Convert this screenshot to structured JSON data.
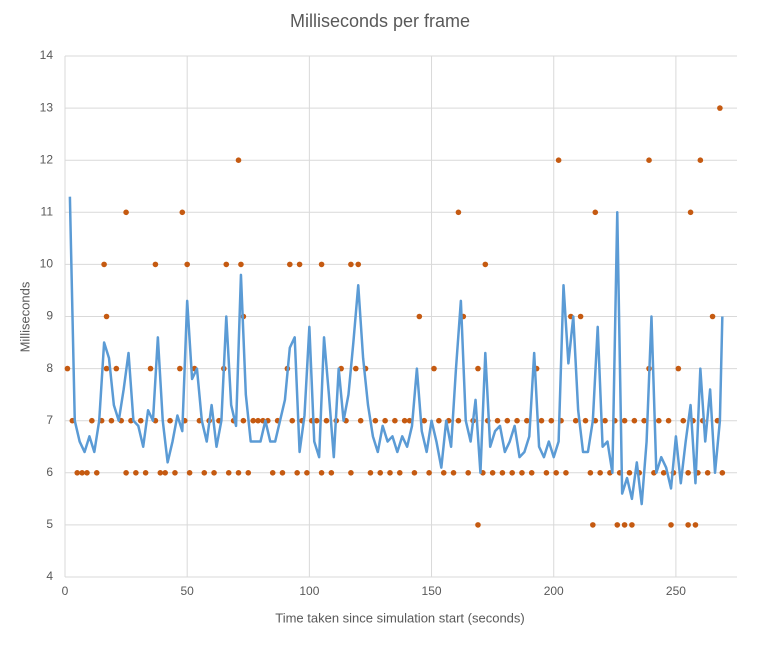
{
  "chart_data": {
    "type": "combo",
    "title": "Milliseconds per frame",
    "x_label": "Time taken since simulation start (seconds)",
    "y_label": "Milliseconds",
    "xlim": [
      0,
      275
    ],
    "xticks": [
      0,
      50,
      100,
      150,
      200,
      250
    ],
    "ylim": [
      4,
      14
    ],
    "yticks": [
      4,
      5,
      6,
      7,
      8,
      9,
      10,
      11,
      12,
      13,
      14
    ],
    "grid": true,
    "series": [
      {
        "type": "scatter",
        "color": "#c55a11",
        "x": [
          1,
          3,
          5,
          7,
          9,
          11,
          13,
          15,
          17,
          19,
          21,
          23,
          25,
          27,
          29,
          31,
          33,
          35,
          37,
          39,
          41,
          43,
          45,
          47,
          49,
          51,
          53,
          55,
          57,
          59,
          61,
          63,
          65,
          67,
          69,
          71,
          73,
          75,
          77,
          79,
          81,
          83,
          85,
          87,
          89,
          91,
          93,
          95,
          97,
          99,
          101,
          103,
          105,
          107,
          109,
          111,
          113,
          115,
          117,
          119,
          121,
          123,
          125,
          127,
          129,
          131,
          133,
          135,
          137,
          139,
          141,
          143,
          145,
          147,
          149,
          151,
          153,
          155,
          157,
          159,
          161,
          163,
          165,
          167,
          169,
          171,
          173,
          175,
          177,
          179,
          181,
          183,
          185,
          187,
          189,
          191,
          193,
          195,
          197,
          199,
          201,
          203,
          205,
          207,
          209,
          211,
          213,
          215,
          217,
          219,
          221,
          223,
          225,
          227,
          229,
          231,
          233,
          235,
          237,
          239,
          241,
          243,
          245,
          247,
          249,
          251,
          253,
          255,
          257,
          259,
          261,
          263,
          265,
          267,
          269,
          16,
          17,
          25,
          37,
          48,
          50,
          66,
          71,
          72,
          73,
          92,
          96,
          105,
          117,
          120,
          161,
          169,
          172,
          202,
          216,
          217,
          226,
          229,
          232,
          239,
          248,
          255,
          256,
          258,
          260,
          268
        ],
        "values": [
          8,
          7,
          6,
          6,
          6,
          7,
          6,
          7,
          8,
          7,
          8,
          7,
          6,
          7,
          6,
          7,
          6,
          8,
          7,
          6,
          6,
          7,
          6,
          8,
          7,
          6,
          8,
          7,
          6,
          7,
          6,
          7,
          8,
          6,
          7,
          6,
          7,
          6,
          7,
          7,
          7,
          7,
          6,
          7,
          6,
          8,
          7,
          6,
          7,
          6,
          7,
          7,
          6,
          7,
          6,
          7,
          8,
          7,
          6,
          8,
          7,
          8,
          6,
          7,
          6,
          7,
          6,
          7,
          6,
          7,
          7,
          6,
          9,
          7,
          6,
          8,
          7,
          6,
          7,
          6,
          7,
          9,
          6,
          7,
          8,
          6,
          7,
          6,
          7,
          6,
          7,
          6,
          7,
          6,
          7,
          6,
          8,
          7,
          6,
          7,
          6,
          7,
          6,
          9,
          7,
          9,
          7,
          6,
          7,
          6,
          7,
          6,
          7,
          6,
          7,
          6,
          7,
          6,
          7,
          8,
          6,
          7,
          6,
          7,
          6,
          8,
          7,
          6,
          7,
          6,
          7,
          6,
          9,
          7,
          6,
          10,
          9,
          11,
          10,
          11,
          10,
          10,
          12,
          10,
          9,
          10,
          10,
          10,
          10,
          10,
          11,
          5,
          10,
          12,
          5,
          11,
          5,
          5,
          5,
          12,
          5,
          5,
          11,
          5,
          12,
          13
        ]
      },
      {
        "type": "line",
        "color": "#5b9bd5",
        "x": [
          2,
          4,
          6,
          8,
          10,
          12,
          14,
          16,
          18,
          20,
          22,
          24,
          26,
          28,
          30,
          32,
          34,
          36,
          38,
          40,
          42,
          44,
          46,
          48,
          50,
          52,
          54,
          56,
          58,
          60,
          62,
          64,
          66,
          68,
          70,
          72,
          74,
          76,
          78,
          80,
          82,
          84,
          86,
          88,
          90,
          92,
          94,
          96,
          98,
          100,
          102,
          104,
          106,
          108,
          110,
          112,
          114,
          116,
          118,
          120,
          122,
          124,
          126,
          128,
          130,
          132,
          134,
          136,
          138,
          140,
          142,
          144,
          146,
          148,
          150,
          152,
          154,
          156,
          158,
          160,
          162,
          164,
          166,
          168,
          170,
          172,
          174,
          176,
          178,
          180,
          182,
          184,
          186,
          188,
          190,
          192,
          194,
          196,
          198,
          200,
          202,
          204,
          206,
          208,
          210,
          212,
          214,
          216,
          218,
          220,
          222,
          224,
          226,
          228,
          230,
          232,
          234,
          236,
          238,
          240,
          242,
          244,
          246,
          248,
          250,
          252,
          254,
          256,
          258,
          260,
          262,
          264,
          266,
          268,
          269
        ],
        "values": [
          11.3,
          7.0,
          6.6,
          6.4,
          6.7,
          6.4,
          7.0,
          8.5,
          8.2,
          7.3,
          7.0,
          7.6,
          8.3,
          7.0,
          6.9,
          6.5,
          7.2,
          7.0,
          8.6,
          7.0,
          6.2,
          6.6,
          7.1,
          6.8,
          9.3,
          7.8,
          8.0,
          7.0,
          6.6,
          7.3,
          6.5,
          7.0,
          9.0,
          7.3,
          6.9,
          9.8,
          7.5,
          6.6,
          6.6,
          6.6,
          7.0,
          6.6,
          6.6,
          7.0,
          7.4,
          8.4,
          8.6,
          6.4,
          7.1,
          8.8,
          6.6,
          6.3,
          8.6,
          7.5,
          6.3,
          8.0,
          7.0,
          7.5,
          8.5,
          9.6,
          8.2,
          7.3,
          6.7,
          6.4,
          6.9,
          6.6,
          6.7,
          6.4,
          6.7,
          6.5,
          6.9,
          8.0,
          6.8,
          6.4,
          7.0,
          6.6,
          6.1,
          7.0,
          6.5,
          8.0,
          9.3,
          7.0,
          6.6,
          7.4,
          6.0,
          8.3,
          6.5,
          6.8,
          6.9,
          6.4,
          6.6,
          6.9,
          6.3,
          6.4,
          6.7,
          8.3,
          6.5,
          6.3,
          6.6,
          6.3,
          6.6,
          9.6,
          8.1,
          9.0,
          7.2,
          6.4,
          6.4,
          7.0,
          8.8,
          6.5,
          6.6,
          6.0,
          11.0,
          5.6,
          5.9,
          5.5,
          6.2,
          5.4,
          6.6,
          9.0,
          6.0,
          6.3,
          6.1,
          5.7,
          6.7,
          5.8,
          6.6,
          7.3,
          5.8,
          8.0,
          6.6,
          7.6,
          6.0,
          7.0,
          9.0
        ]
      }
    ]
  }
}
